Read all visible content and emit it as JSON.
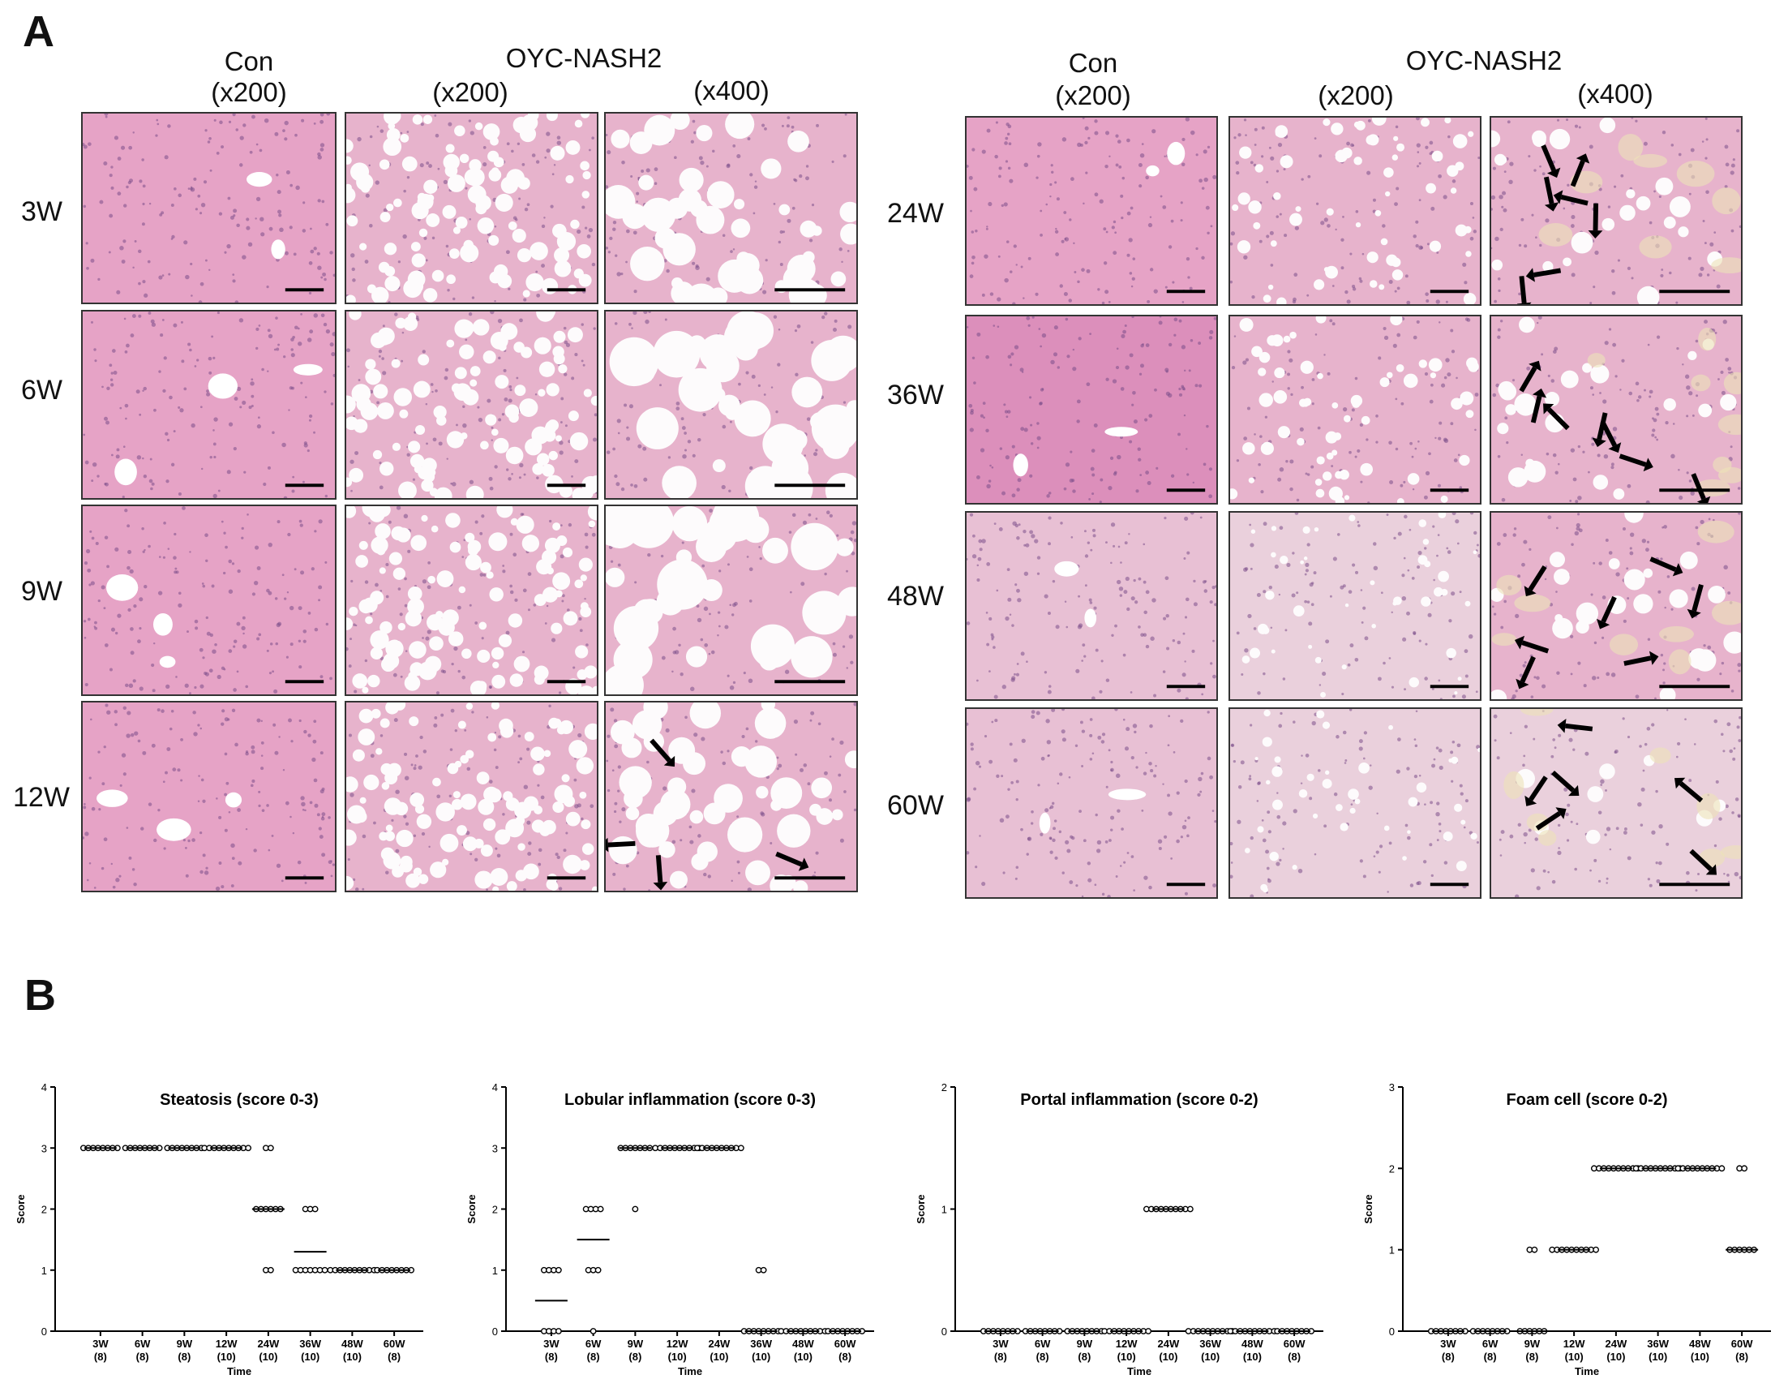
{
  "panelA": {
    "letter": "A",
    "left": {
      "group1": "Con",
      "group1_mag": "(x200)",
      "group2": "OYC-NASH2",
      "group2_mag1": "(x200)",
      "group2_mag2": "(x400)",
      "rows": [
        "3W",
        "6W",
        "9W",
        "12W"
      ]
    },
    "right": {
      "group1": "Con",
      "group1_mag": "(x200)",
      "group2": "OYC-NASH2",
      "group2_mag1": "(x200)",
      "group2_mag2": "(x400)",
      "rows": [
        "24W",
        "36W",
        "48W",
        "60W"
      ]
    },
    "stain_colors": {
      "con": "#e6a3c6",
      "con_fatty": "#e8c0d4",
      "nash": "#e7b3cc",
      "nash_pale": "#ead0dc",
      "vacuole": "#fdfbfc",
      "nuclei": "#7c4f8a"
    },
    "arrows_present": [
      "12W x400",
      "24W x400",
      "36W x400",
      "48W x400",
      "60W x400"
    ]
  },
  "panelB": {
    "letter": "B"
  },
  "chart_data": [
    {
      "type": "scatter",
      "title": "Steatosis (score 0-3)",
      "xlabel": "Time",
      "ylabel": "Score",
      "ylim": [
        0,
        4
      ],
      "yticks": [
        0,
        1,
        2,
        3,
        4
      ],
      "categories": [
        "3W",
        "6W",
        "9W",
        "12W",
        "24W",
        "36W",
        "48W",
        "60W"
      ],
      "n_labels": [
        "(8)",
        "(8)",
        "(8)",
        "(10)",
        "(10)",
        "(10)",
        "(10)",
        "(8)"
      ],
      "points": [
        [
          3,
          3,
          3,
          3,
          3,
          3,
          3,
          3
        ],
        [
          3,
          3,
          3,
          3,
          3,
          3,
          3,
          3
        ],
        [
          3,
          3,
          3,
          3,
          3,
          3,
          3,
          3
        ],
        [
          3,
          3,
          3,
          3,
          3,
          3,
          3,
          3,
          3,
          3
        ],
        [
          3,
          3,
          2,
          2,
          2,
          2,
          2,
          2,
          1,
          1
        ],
        [
          2,
          2,
          2,
          1,
          1,
          1,
          1,
          1,
          1,
          1
        ],
        [
          1,
          1,
          1,
          1,
          1,
          1,
          1,
          1,
          1,
          1
        ],
        [
          1,
          1,
          1,
          1,
          1,
          1,
          1,
          1
        ]
      ],
      "means": [
        3,
        3,
        3,
        3,
        2,
        1.3,
        1,
        1
      ]
    },
    {
      "type": "scatter",
      "title": "Lobular inflammation (score 0-3)",
      "xlabel": "Time",
      "ylabel": "Score",
      "ylim": [
        0,
        4
      ],
      "yticks": [
        0,
        1,
        2,
        3,
        4
      ],
      "categories": [
        "3W",
        "6W",
        "9W",
        "12W",
        "24W",
        "36W",
        "48W",
        "60W"
      ],
      "n_labels": [
        "(8)",
        "(8)",
        "(8)",
        "(10)",
        "(10)",
        "(10)",
        "(10)",
        "(8)"
      ],
      "points": [
        [
          1,
          1,
          1,
          1,
          0,
          0,
          0,
          0
        ],
        [
          2,
          2,
          2,
          2,
          1,
          1,
          1,
          0
        ],
        [
          3,
          3,
          3,
          3,
          3,
          3,
          3,
          2
        ],
        [
          3,
          3,
          3,
          3,
          3,
          3,
          3,
          3,
          3,
          3
        ],
        [
          3,
          3,
          3,
          3,
          3,
          3,
          3,
          3,
          3,
          3
        ],
        [
          1,
          1,
          0,
          0,
          0,
          0,
          0,
          0,
          0,
          0
        ],
        [
          0,
          0,
          0,
          0,
          0,
          0,
          0,
          0,
          0,
          0
        ],
        [
          0,
          0,
          0,
          0,
          0,
          0,
          0,
          0
        ]
      ],
      "means": [
        0.5,
        1.5,
        3,
        3,
        3,
        0,
        0,
        0
      ]
    },
    {
      "type": "scatter",
      "title": "Portal inflammation (score 0-2)",
      "xlabel": "Time",
      "ylabel": "Score",
      "ylim": [
        0,
        2
      ],
      "yticks": [
        0,
        1,
        2
      ],
      "categories": [
        "3W",
        "6W",
        "9W",
        "12W",
        "24W",
        "36W",
        "48W",
        "60W"
      ],
      "n_labels": [
        "(8)",
        "(8)",
        "(8)",
        "(10)",
        "(10)",
        "(10)",
        "(10)",
        "(8)"
      ],
      "points": [
        [
          0,
          0,
          0,
          0,
          0,
          0,
          0,
          0
        ],
        [
          0,
          0,
          0,
          0,
          0,
          0,
          0,
          0
        ],
        [
          0,
          0,
          0,
          0,
          0,
          0,
          0,
          0
        ],
        [
          0,
          0,
          0,
          0,
          0,
          0,
          0,
          0,
          0,
          0
        ],
        [
          1,
          1,
          1,
          1,
          1,
          1,
          1,
          1,
          1,
          1
        ],
        [
          0,
          0,
          0,
          0,
          0,
          0,
          0,
          0,
          0,
          0
        ],
        [
          0,
          0,
          0,
          0,
          0,
          0,
          0,
          0,
          0,
          0
        ],
        [
          0,
          0,
          0,
          0,
          0,
          0,
          0,
          0
        ]
      ],
      "means": [
        0,
        0,
        0,
        0,
        1,
        0,
        0,
        0
      ]
    },
    {
      "type": "scatter",
      "title": "Foam cell (score 0-2)",
      "xlabel": "Time",
      "ylabel": "Score",
      "ylim": [
        0,
        3
      ],
      "yticks": [
        0,
        1,
        2,
        3
      ],
      "categories": [
        "3W",
        "6W",
        "9W",
        "12W",
        "24W",
        "36W",
        "48W",
        "60W"
      ],
      "n_labels": [
        "(8)",
        "(8)",
        "(8)",
        "(10)",
        "(10)",
        "(10)",
        "(10)",
        "(8)"
      ],
      "points": [
        [
          0,
          0,
          0,
          0,
          0,
          0,
          0,
          0
        ],
        [
          0,
          0,
          0,
          0,
          0,
          0,
          0,
          0
        ],
        [
          1,
          1,
          0,
          0,
          0,
          0,
          0,
          0
        ],
        [
          1,
          1,
          1,
          1,
          1,
          1,
          1,
          1,
          1,
          1
        ],
        [
          2,
          2,
          2,
          2,
          2,
          2,
          2,
          2,
          2,
          2
        ],
        [
          2,
          2,
          2,
          2,
          2,
          2,
          2,
          2,
          2,
          2
        ],
        [
          2,
          2,
          2,
          2,
          2,
          2,
          2,
          2,
          2,
          2
        ],
        [
          2,
          2,
          1,
          1,
          1,
          1,
          1,
          1
        ]
      ],
      "means": [
        0,
        0,
        0,
        1,
        2,
        2,
        2,
        1
      ]
    }
  ]
}
